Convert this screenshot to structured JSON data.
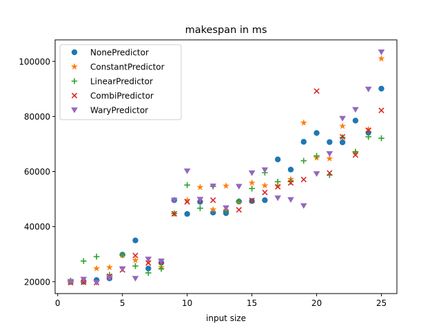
{
  "chart_data": {
    "type": "scatter",
    "title": "makespan in ms",
    "xlabel": "input size",
    "ylabel": "",
    "xlim": [
      -0.2,
      26.2
    ],
    "ylim": [
      15700,
      107800
    ],
    "xticks": [
      0,
      5,
      10,
      15,
      20,
      25
    ],
    "yticks": [
      20000,
      40000,
      60000,
      80000,
      100000
    ],
    "grid": false,
    "legend_position": "top-left",
    "x": [
      1,
      2,
      3,
      4,
      5,
      6,
      7,
      8,
      9,
      10,
      11,
      12,
      13,
      14,
      15,
      16,
      17,
      18,
      19,
      20,
      21,
      22,
      23,
      24,
      25
    ],
    "series": [
      {
        "name": "NonePredictor",
        "marker": "circle",
        "color": "#1f77b4",
        "values": [
          19900,
          20000,
          20600,
          21200,
          29800,
          35000,
          24800,
          26900,
          49600,
          44600,
          49000,
          45100,
          44900,
          49100,
          49300,
          49600,
          64400,
          60700,
          70800,
          74000,
          70700,
          70600,
          78500,
          74100,
          90100
        ]
      },
      {
        "name": "ConstantPredictor",
        "marker": "star",
        "color": "#ff7f0e",
        "values": [
          19700,
          20000,
          24800,
          25200,
          29600,
          27800,
          27200,
          25200,
          44600,
          49600,
          54300,
          46200,
          54800,
          49000,
          55900,
          54900,
          54600,
          57200,
          77700,
          65000,
          64700,
          76500,
          67000,
          75300,
          101000
        ]
      },
      {
        "name": "LinearPredictor",
        "marker": "plus",
        "color": "#2ca02c",
        "values": [
          20400,
          27500,
          29100,
          22500,
          29700,
          25700,
          23200,
          24700,
          44800,
          55100,
          46700,
          54600,
          45600,
          49200,
          53800,
          59600,
          56300,
          56300,
          63900,
          65700,
          58700,
          72400,
          67200,
          72600,
          72100
        ]
      },
      {
        "name": "CombiPredictor",
        "marker": "x",
        "color": "#d62728",
        "values": [
          19700,
          19800,
          19700,
          22000,
          24300,
          29500,
          26800,
          27300,
          44700,
          49000,
          49700,
          49600,
          46700,
          46100,
          49500,
          52400,
          54500,
          55900,
          57100,
          89200,
          59500,
          72600,
          66000,
          75000,
          82200
        ]
      },
      {
        "name": "WaryPredictor",
        "marker": "triangle_down",
        "color": "#9467bd",
        "values": [
          20100,
          20900,
          19700,
          21300,
          24700,
          21200,
          28200,
          27500,
          49600,
          60200,
          49900,
          54700,
          46800,
          54600,
          59500,
          60600,
          50400,
          49800,
          47600,
          59200,
          66500,
          79300,
          82500,
          89900,
          103400
        ]
      }
    ]
  }
}
